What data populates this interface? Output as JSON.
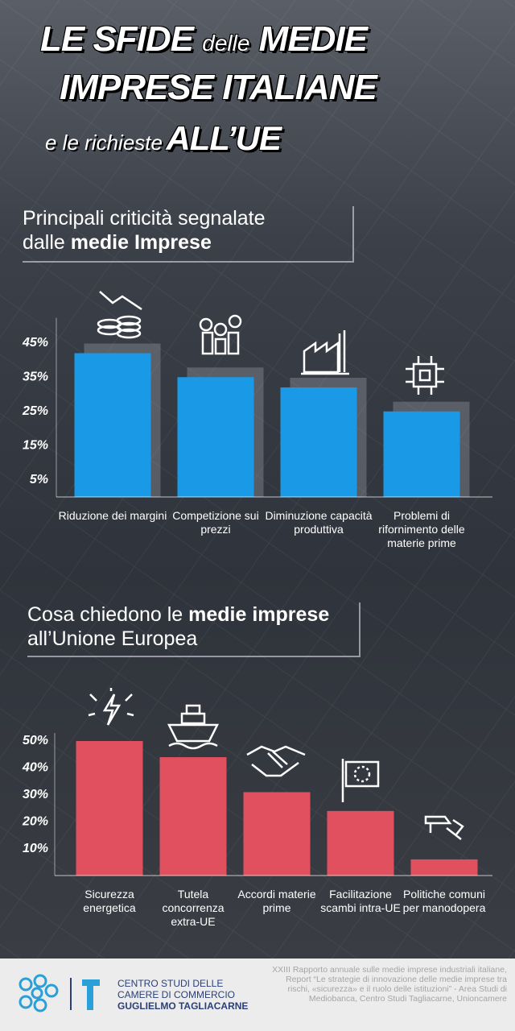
{
  "header": {
    "title_parts": [
      "LE SFIDE",
      "delle",
      "MEDIE",
      "IMPRESE ITALIANE",
      "e le richieste",
      "ALL’UE"
    ]
  },
  "chart_data": [
    {
      "type": "bar",
      "title_parts": [
        "Principali criticità segnalate",
        "dalle",
        "medie Imprese"
      ],
      "categories": [
        "Riduzione dei margini",
        "Competizione sui prezzi",
        "Diminuzione capacità produttiva",
        "Problemi di rifornimento delle materie prime"
      ],
      "values": [
        42,
        35,
        32,
        25
      ],
      "color": "#1a9ae6",
      "ylim": [
        0,
        50
      ],
      "yticks": [
        {
          "value": 5,
          "label": "5%"
        },
        {
          "value": 15,
          "label": "15%"
        },
        {
          "value": 25,
          "label": "25%"
        },
        {
          "value": 35,
          "label": "35%"
        },
        {
          "value": 45,
          "label": "45%"
        }
      ]
    },
    {
      "type": "bar",
      "title_parts": [
        "Cosa chiedono le",
        "medie imprese",
        "all’Unione Europea"
      ],
      "categories": [
        "Sicurezza energetica",
        "Tutela concorrenza extra-UE",
        "Accordi materie prime",
        "Facilitazione scambi intra-UE",
        "Politiche comuni per manodopera"
      ],
      "values": [
        50,
        44,
        31,
        24,
        6
      ],
      "color": "#e0505f",
      "ylim": [
        0,
        50
      ],
      "yticks": [
        {
          "value": 10,
          "label": "10%"
        },
        {
          "value": 20,
          "label": "20%"
        },
        {
          "value": 30,
          "label": "30%"
        },
        {
          "value": 40,
          "label": "40%"
        },
        {
          "value": 50,
          "label": "50%"
        }
      ]
    }
  ],
  "footer": {
    "org": [
      "CENTRO STUDI DELLE",
      "CAMERE DI COMMERCIO",
      "GUGLIELMO TAGLIACARNE"
    ],
    "source": "XXIII Rapporto annuale sulle medie imprese industriali italiane, Report “Le strategie di innovazione delle medie imprese tra rischi, «sicurezza» e il ruolo delle istituzioni” - Area Studi di Mediobanca, Centro Studi Tagliacarne, Unioncamere"
  }
}
